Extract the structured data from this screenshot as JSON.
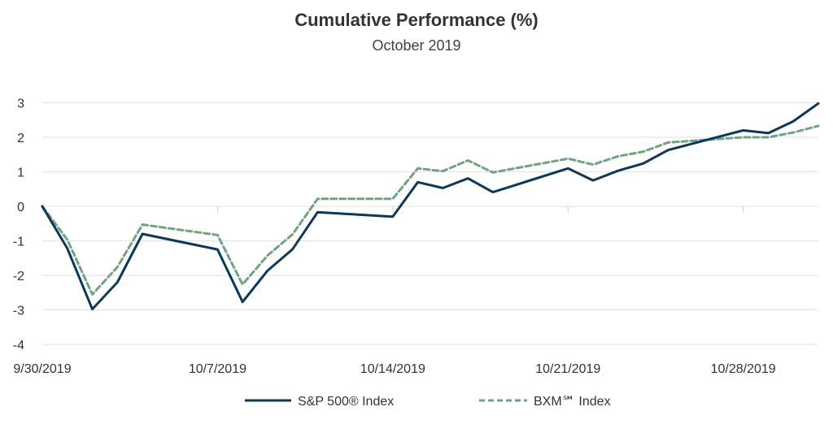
{
  "chart_data": {
    "type": "line",
    "title": "Cumulative Performance (%)",
    "subtitle": "October 2019",
    "xlabel": "",
    "ylabel": "",
    "x_ticks": [
      "9/30/2019",
      "10/7/2019",
      "10/14/2019",
      "10/21/2019",
      "10/28/2019"
    ],
    "y_ticks": [
      "3",
      "2",
      "1",
      "0",
      "-1",
      "-2",
      "-3",
      "-4"
    ],
    "ylim": [
      -4,
      3
    ],
    "grid": "horizontal",
    "legend_position": "bottom",
    "x": [
      "9/30/2019",
      "10/1/2019",
      "10/2/2019",
      "10/3/2019",
      "10/4/2019",
      "10/7/2019",
      "10/8/2019",
      "10/9/2019",
      "10/10/2019",
      "10/11/2019",
      "10/14/2019",
      "10/15/2019",
      "10/16/2019",
      "10/17/2019",
      "10/18/2019",
      "10/21/2019",
      "10/22/2019",
      "10/23/2019",
      "10/24/2019",
      "10/25/2019",
      "10/28/2019",
      "10/29/2019",
      "10/30/2019",
      "10/31/2019"
    ],
    "series": [
      {
        "name": "S&P 500® Index",
        "color": "#0d3857",
        "style": "solid",
        "values": [
          0.0,
          -1.22,
          -2.98,
          -2.2,
          -0.8,
          -1.25,
          -2.77,
          -1.86,
          -1.24,
          -0.17,
          -0.3,
          0.7,
          0.53,
          0.81,
          0.41,
          1.1,
          0.75,
          1.03,
          1.24,
          1.63,
          2.2,
          2.12,
          2.46,
          2.98
        ]
      },
      {
        "name": "BXM℠ Index",
        "color": "#6fa384",
        "style": "dashed",
        "values": [
          0.0,
          -0.97,
          -2.55,
          -1.76,
          -0.53,
          -0.83,
          -2.26,
          -1.42,
          -0.81,
          0.22,
          0.22,
          1.1,
          1.02,
          1.33,
          0.98,
          1.38,
          1.21,
          1.45,
          1.58,
          1.85,
          2.0,
          2.0,
          2.14,
          2.33
        ]
      }
    ]
  },
  "page_layout_note": ""
}
